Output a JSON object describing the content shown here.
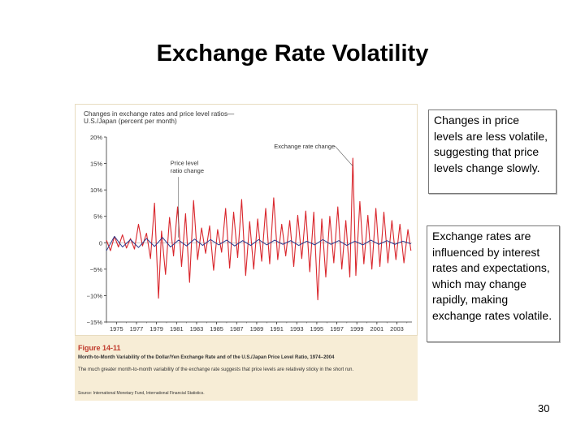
{
  "slide": {
    "title": "Exchange Rate Volatility",
    "page_number": "30"
  },
  "notes": [
    "Changes in price levels are less volatile, suggesting that price levels change slowly.",
    "Exchange rates are influenced by interest rates and expectations, which may change rapidly, making exchange rates volatile."
  ],
  "figure": {
    "label": "Figure 14-11",
    "caption_title": "Month-to-Month Variability of the Dollar/Yen Exchange Rate and of the U.S./Japan Price Level Ratio, 1974–2004",
    "caption_body": "The much greater month-to-month variability of the exchange rate suggests that price levels are relatively sticky in the short run.",
    "source": "Source: International Monetary Fund, International Financial Statistics."
  },
  "colors": {
    "exchange_rate": "#d9262c",
    "price_level": "#2b3a8c",
    "panel": "#f7edd6",
    "figure_label": "#c0392b"
  },
  "chart_data": {
    "type": "line",
    "title": "Changes in exchange rates and price level ratios—U.S./Japan (percent per month)",
    "ylim": [
      -15,
      20
    ],
    "y_ticks": [
      "20%",
      "15%",
      "10%",
      "5%",
      "0",
      "−5%",
      "−10%",
      "−15%"
    ],
    "y_tick_values": [
      20,
      15,
      10,
      5,
      0,
      -5,
      -10,
      -15
    ],
    "xlim": [
      1974,
      2004.5
    ],
    "x_ticks": [
      "1975",
      "1977",
      "1979",
      "1981",
      "1983",
      "1985",
      "1987",
      "1989",
      "1991",
      "1993",
      "1995",
      "1997",
      "1999",
      "2001",
      "2003"
    ],
    "x_tick_values": [
      1975,
      1977,
      1979,
      1981,
      1983,
      1985,
      1987,
      1989,
      1991,
      1993,
      1995,
      1997,
      1999,
      2001,
      2003
    ],
    "grid": false,
    "annotations": [
      {
        "text": "Exchange rate change",
        "x": 1998.6,
        "y": 16
      },
      {
        "text": "Price level",
        "x": 1981.2,
        "y": 13.5
      },
      {
        "text": "ratio change",
        "x": 1981.2,
        "y": 12
      }
    ],
    "series": [
      {
        "key": "exchange",
        "x": [
          1974.0,
          1974.4,
          1974.8,
          1975.2,
          1975.6,
          1976.0,
          1976.4,
          1976.8,
          1977.2,
          1977.6,
          1978.0,
          1978.4,
          1978.8,
          1979.2,
          1979.5,
          1979.9,
          1980.3,
          1980.7,
          1981.1,
          1981.5,
          1981.9,
          1982.3,
          1982.7,
          1983.1,
          1983.5,
          1983.9,
          1984.3,
          1984.7,
          1985.1,
          1985.5,
          1985.9,
          1986.3,
          1986.7,
          1987.1,
          1987.5,
          1987.9,
          1988.3,
          1988.7,
          1989.1,
          1989.5,
          1989.9,
          1990.3,
          1990.7,
          1991.1,
          1991.5,
          1991.9,
          1992.3,
          1992.7,
          1993.1,
          1993.5,
          1993.9,
          1994.3,
          1994.7,
          1995.1,
          1995.5,
          1995.9,
          1996.3,
          1996.7,
          1997.1,
          1997.5,
          1997.9,
          1998.3,
          1998.6,
          1998.9,
          1999.3,
          1999.7,
          2000.1,
          2000.5,
          2000.9,
          2001.3,
          2001.7,
          2002.1,
          2002.5,
          2002.9,
          2003.3,
          2003.7,
          2004.1,
          2004.4
        ],
        "values": [
          0.5,
          -1.5,
          1.2,
          -0.8,
          1.5,
          -1.0,
          0.8,
          -1.2,
          3.5,
          -0.6,
          1.8,
          -3.0,
          7.5,
          -10.5,
          2.2,
          -6.0,
          4.8,
          -2.5,
          6.8,
          -4.5,
          5.5,
          -7.5,
          8.0,
          -3.2,
          2.8,
          -2.0,
          3.2,
          -5.2,
          2.5,
          -1.8,
          6.5,
          -4.8,
          5.8,
          -2.8,
          8.2,
          -6.2,
          4.0,
          -5.0,
          4.5,
          -3.5,
          6.5,
          -4.0,
          8.5,
          -3.2,
          3.5,
          -2.5,
          4.2,
          -4.5,
          5.2,
          -3.0,
          6.0,
          -5.5,
          5.8,
          -10.8,
          4.5,
          -6.5,
          5.0,
          -3.8,
          6.8,
          -5.0,
          4.2,
          -6.5,
          16.0,
          -6.2,
          7.8,
          -4.0,
          5.2,
          -5.0,
          6.5,
          -4.5,
          5.8,
          -3.8,
          4.2,
          -3.2,
          3.5,
          -3.8,
          2.5,
          -1.5
        ]
      },
      {
        "key": "price",
        "x": [
          1974.0,
          1974.8,
          1975.6,
          1976.4,
          1977.2,
          1978.0,
          1978.8,
          1979.6,
          1980.4,
          1981.2,
          1982.0,
          1982.8,
          1983.6,
          1984.4,
          1985.2,
          1986.0,
          1986.8,
          1987.6,
          1988.4,
          1989.2,
          1990.0,
          1990.8,
          1991.6,
          1992.4,
          1993.2,
          1994.0,
          1994.8,
          1995.6,
          1996.4,
          1997.2,
          1998.0,
          1998.8,
          1999.6,
          2000.4,
          2001.2,
          2002.0,
          2002.8,
          2003.6,
          2004.4
        ],
        "values": [
          -1.5,
          1.2,
          -0.8,
          0.6,
          -0.9,
          0.8,
          -0.7,
          1.0,
          -0.8,
          0.5,
          -0.6,
          0.7,
          -0.5,
          0.6,
          -0.4,
          0.5,
          -0.6,
          0.4,
          -0.5,
          0.6,
          -0.4,
          0.5,
          -0.3,
          0.4,
          -0.5,
          0.3,
          -0.4,
          0.6,
          -0.3,
          0.4,
          -0.5,
          0.3,
          -0.4,
          0.5,
          -0.3,
          0.4,
          -0.3,
          0.3,
          -0.2
        ]
      }
    ]
  }
}
